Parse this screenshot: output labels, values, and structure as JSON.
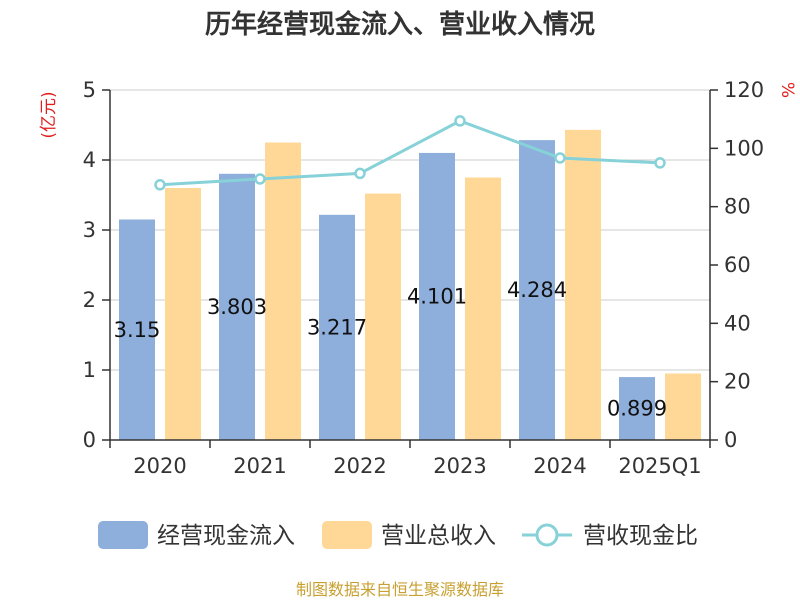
{
  "chart_data": {
    "type": "bar",
    "title": "历年经营现金流入、营业收入情况",
    "categories": [
      "2020",
      "2021",
      "2022",
      "2023",
      "2024",
      "2025Q1"
    ],
    "y_left": {
      "unit": "(亿元)",
      "ylim": [
        0,
        5
      ],
      "ticks": [
        "0",
        "1",
        "2",
        "3",
        "4",
        "5"
      ]
    },
    "y_right": {
      "unit": "%",
      "ylim": [
        0,
        120
      ],
      "ticks": [
        "0",
        "20",
        "40",
        "60",
        "80",
        "100",
        "120"
      ]
    },
    "grid": true,
    "legend_position": "bottom",
    "series": [
      {
        "name": "经营现金流入",
        "type": "bar",
        "axis": "left",
        "color": "#8eaedb",
        "values": [
          3.15,
          3.803,
          3.217,
          4.101,
          4.284,
          0.899
        ],
        "labels": [
          "3.15",
          "3.803",
          "3.217",
          "4.101",
          "4.284",
          "0.899"
        ]
      },
      {
        "name": "营业总收入",
        "type": "bar",
        "axis": "left",
        "color": "#ffd898",
        "values": [
          3.6,
          4.25,
          3.52,
          3.75,
          4.43,
          0.95
        ]
      },
      {
        "name": "营收现金比",
        "type": "line",
        "axis": "right",
        "color": "#86d2d8",
        "values": [
          87.5,
          89.5,
          91.4,
          109.4,
          96.7,
          95.0
        ]
      }
    ]
  },
  "source_text": "制图数据来自恒生聚源数据库"
}
